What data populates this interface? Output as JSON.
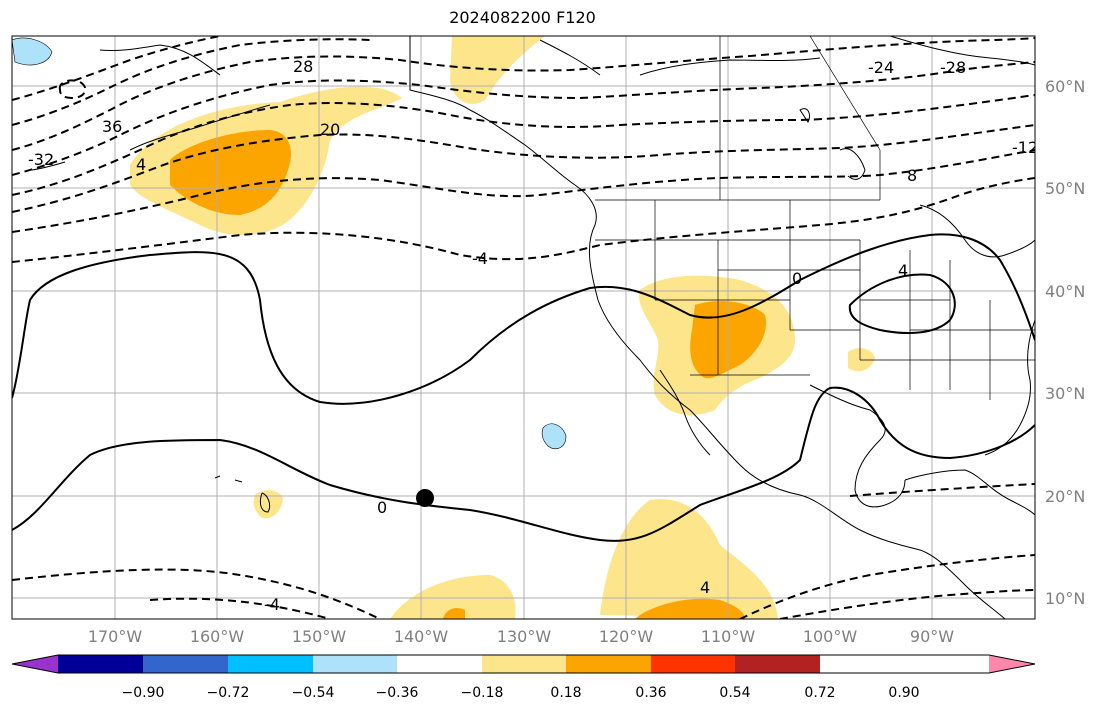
{
  "title": "2024082200 F120",
  "map": {
    "lon_labels": [
      "170°W",
      "160°W",
      "150°W",
      "140°W",
      "130°W",
      "120°W",
      "110°W",
      "100°W",
      "90°W"
    ],
    "lat_labels": [
      "60°N",
      "50°N",
      "40°N",
      "30°N",
      "20°N",
      "10°N"
    ],
    "contour_labels": [
      "28",
      "36",
      "-32",
      "20",
      "4",
      "-4",
      "0",
      "4",
      "-4",
      "4",
      "0",
      "8",
      "-24",
      "-28",
      "-12"
    ],
    "colors": {
      "land_outline": "#000000",
      "grid": "#b0b0b0",
      "light_orange": "#fde58c",
      "orange": "#fca400",
      "light_blue": "#aee2fb",
      "marker": "#000000"
    }
  },
  "colorbar": {
    "tick_labels": [
      "−0.90",
      "−0.72",
      "−0.54",
      "−0.36",
      "−0.18",
      "0.18",
      "0.36",
      "0.54",
      "0.72",
      "0.90"
    ],
    "colors": [
      "#9933cc",
      "#000099",
      "#3366cc",
      "#00bfff",
      "#aee2fb",
      "#ffffff",
      "#fde58c",
      "#fca400",
      "#ff3300",
      "#b22222",
      "#ff88aa"
    ]
  }
}
